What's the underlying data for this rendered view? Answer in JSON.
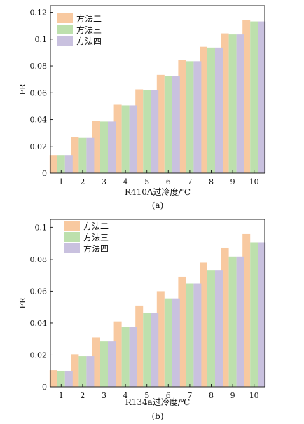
{
  "legend_swatches": {
    "method2": "#f8c9a0",
    "method3": "#bde0ad",
    "method4": "#c9c1df"
  },
  "chart_data": [
    {
      "type": "bar",
      "caption": "(a)",
      "title": "",
      "xlabel": "R410A过冷度/℃",
      "ylabel": "FR",
      "categories": [
        "1",
        "2",
        "3",
        "4",
        "5",
        "6",
        "7",
        "8",
        "9",
        "10"
      ],
      "ylim": [
        0,
        0.125
      ],
      "yticks": [
        0,
        0.02,
        0.04,
        0.06,
        0.08,
        0.1,
        0.12
      ],
      "ytick_labels": [
        "0",
        "0.02",
        "0.04",
        "0.06",
        "0.08",
        "0.1",
        "0.12"
      ],
      "legend_position": "top-left",
      "series": [
        {
          "name": "方法二",
          "color": "#f8c9a0",
          "values": [
            0.0135,
            0.027,
            0.039,
            0.051,
            0.0625,
            0.0733,
            0.0843,
            0.0943,
            0.1043,
            0.1145
          ]
        },
        {
          "name": "方法三",
          "color": "#bde0ad",
          "values": [
            0.0135,
            0.0263,
            0.0385,
            0.0505,
            0.0618,
            0.0726,
            0.0835,
            0.0937,
            0.1035,
            0.1132
          ]
        },
        {
          "name": "方法四",
          "color": "#c9c1df",
          "values": [
            0.0135,
            0.0263,
            0.0385,
            0.0505,
            0.0618,
            0.0726,
            0.0835,
            0.0937,
            0.1035,
            0.1132
          ]
        }
      ]
    },
    {
      "type": "bar",
      "caption": "(b)",
      "title": "",
      "xlabel": "R134a过冷度/℃",
      "ylabel": "FR",
      "categories": [
        "1",
        "2",
        "3",
        "4",
        "5",
        "6",
        "7",
        "8",
        "9",
        "10"
      ],
      "ylim": [
        0,
        0.105
      ],
      "yticks": [
        0,
        0.02,
        0.04,
        0.06,
        0.08,
        0.1
      ],
      "ytick_labels": [
        "0",
        "0.02",
        "0.04",
        "0.06",
        "0.08",
        "0.1"
      ],
      "legend_position": "top-left",
      "series": [
        {
          "name": "方法二",
          "color": "#f8c9a0",
          "values": [
            0.0105,
            0.0205,
            0.031,
            0.041,
            0.051,
            0.06,
            0.069,
            0.078,
            0.087,
            0.0958
          ]
        },
        {
          "name": "方法三",
          "color": "#bde0ad",
          "values": [
            0.0098,
            0.0193,
            0.0285,
            0.0375,
            0.0465,
            0.0555,
            0.0648,
            0.0733,
            0.0818,
            0.0903
          ]
        },
        {
          "name": "方法四",
          "color": "#c9c1df",
          "values": [
            0.0098,
            0.0193,
            0.0285,
            0.0375,
            0.0465,
            0.0555,
            0.0648,
            0.0733,
            0.0818,
            0.0903
          ]
        }
      ]
    }
  ]
}
